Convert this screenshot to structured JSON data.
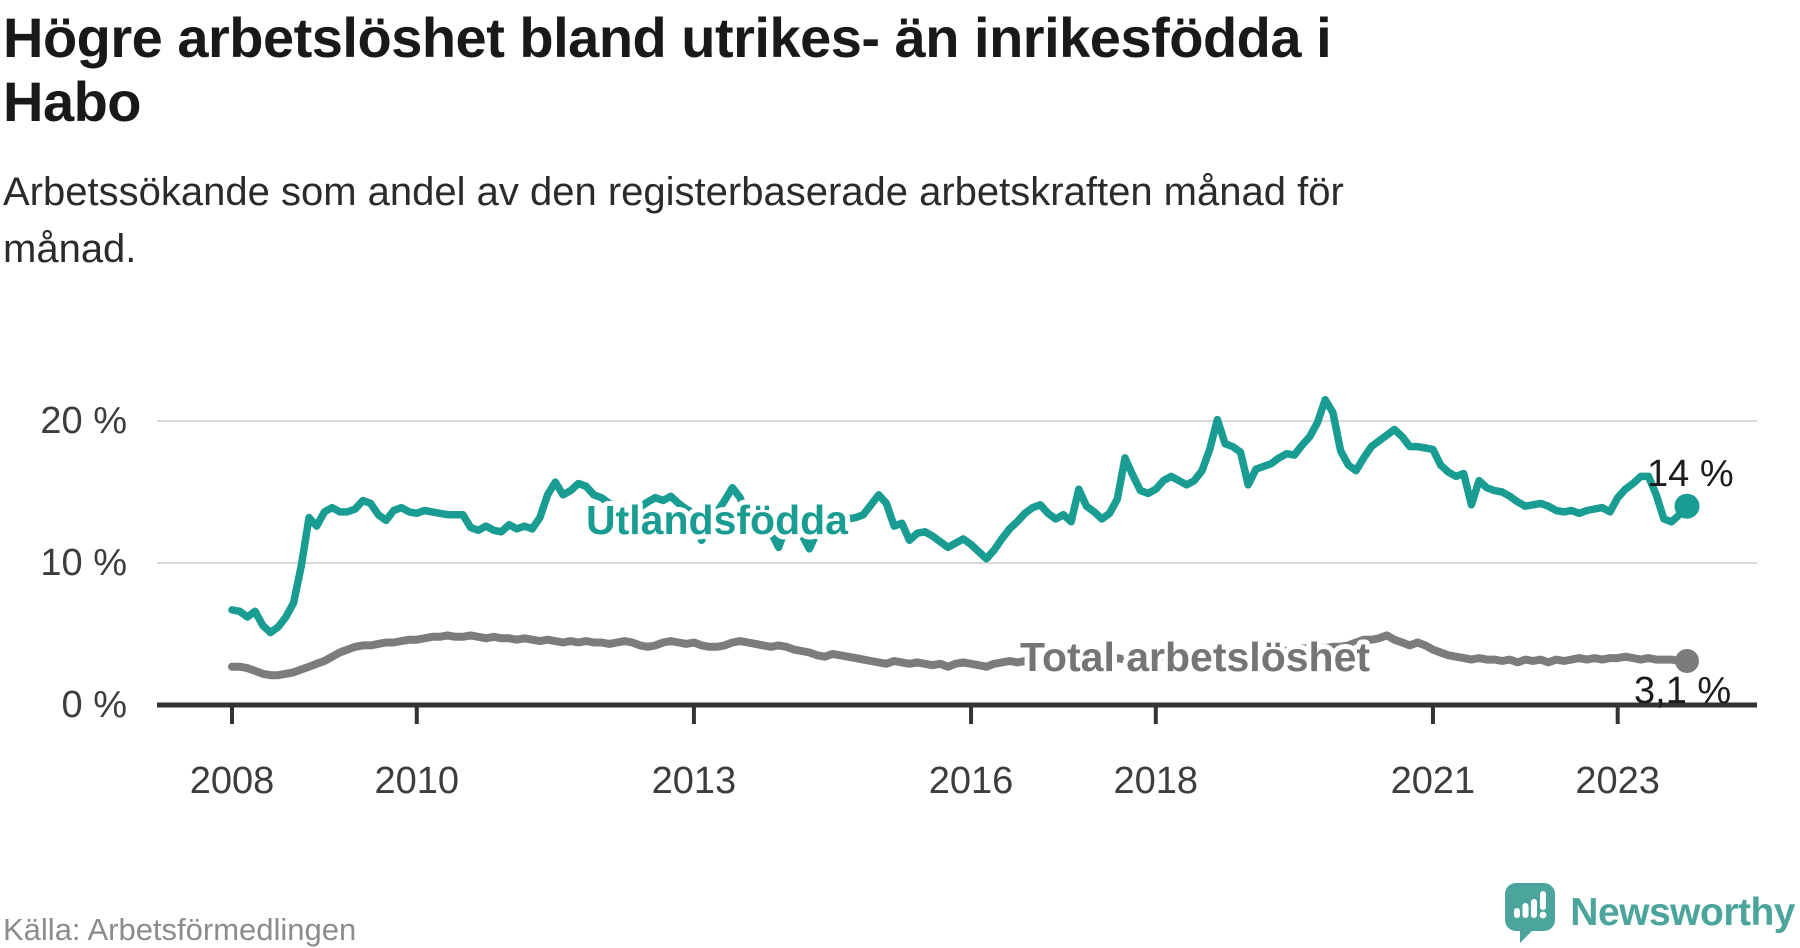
{
  "title": {
    "text": "Högre arbetslöshet bland utrikes- än inrikesfödda i Habo",
    "lines": [
      "Högre arbetslöshet bland utrikes- än inrikesfödda i",
      "Habo"
    ]
  },
  "subtitle": {
    "text": "Arbetssökande som andel av den registerbaserade arbetskraften månad för månad.",
    "lines": [
      "Arbetssökande som andel av den registerbaserade arbetskraften månad för",
      "månad."
    ]
  },
  "source": "Källa: Arbetsförmedlingen",
  "brand": {
    "name": "Newsworthy",
    "icon": "speech-bubble-bar-chart-exclamation-icon",
    "color": "#4ba59d"
  },
  "colors": {
    "series1": "#199c92",
    "series2": "#7c7c7c",
    "grid": "#d9d9d9",
    "axis": "#333333",
    "title_text": "#191919",
    "axis_text": "#3d3d3d",
    "source_text": "#8c8c8c"
  },
  "chart_data": {
    "type": "line",
    "title": "Högre arbetslöshet bland utrikes- än inrikesfödda i Habo",
    "xlabel": "",
    "ylabel": "",
    "unit": "%",
    "frequency": "monthly",
    "x_start": "2008-01",
    "x_end": "2023-10",
    "ylim": [
      0,
      22
    ],
    "grid": "horizontal",
    "y_axis": {
      "ticks": [
        {
          "value": 20,
          "label": "20 %"
        },
        {
          "value": 10,
          "label": "10 %"
        },
        {
          "value": 0,
          "label": "0 %"
        }
      ]
    },
    "x_axis": {
      "ticks": [
        {
          "year": 2008,
          "label": "2008"
        },
        {
          "year": 2010,
          "label": "2010"
        },
        {
          "year": 2013,
          "label": "2013"
        },
        {
          "year": 2016,
          "label": "2016"
        },
        {
          "year": 2018,
          "label": "2018"
        },
        {
          "year": 2021,
          "label": "2021"
        },
        {
          "year": 2023,
          "label": "2023"
        }
      ]
    },
    "series": [
      {
        "name": "Utlandsfödda",
        "color": "#199c92",
        "end_label": "14 %",
        "end_value": 14.0,
        "values": [
          6.7,
          6.6,
          6.2,
          6.6,
          5.6,
          5.1,
          5.5,
          6.2,
          7.2,
          9.8,
          13.2,
          12.6,
          13.6,
          13.9,
          13.6,
          13.6,
          13.8,
          14.4,
          14.2,
          13.4,
          13.0,
          13.7,
          13.9,
          13.6,
          13.5,
          13.7,
          13.6,
          13.5,
          13.4,
          13.4,
          13.4,
          12.5,
          12.3,
          12.6,
          12.3,
          12.2,
          12.7,
          12.4,
          12.6,
          12.4,
          13.2,
          14.8,
          15.7,
          14.8,
          15.1,
          15.6,
          15.4,
          14.8,
          14.6,
          14.2,
          13.8,
          14.0,
          13.6,
          13.9,
          14.3,
          14.6,
          14.4,
          14.7,
          14.2,
          13.8,
          13.5,
          11.6,
          12.8,
          13.6,
          14.4,
          15.3,
          14.6,
          13.2,
          12.4,
          13.0,
          12.2,
          11.1,
          12.6,
          13.4,
          12.0,
          11.0,
          12.2,
          13.0,
          13.3,
          13.2,
          13.1,
          13.2,
          13.4,
          14.1,
          14.8,
          14.2,
          12.6,
          12.8,
          11.6,
          12.1,
          12.2,
          11.9,
          11.5,
          11.1,
          11.4,
          11.7,
          11.3,
          10.8,
          10.3,
          10.9,
          11.7,
          12.4,
          12.9,
          13.5,
          13.9,
          14.1,
          13.5,
          13.1,
          13.4,
          12.9,
          15.2,
          14.0,
          13.6,
          13.1,
          13.5,
          14.5,
          17.4,
          16.2,
          15.1,
          14.9,
          15.2,
          15.8,
          16.1,
          15.8,
          15.5,
          15.8,
          16.5,
          18.0,
          20.1,
          18.4,
          18.2,
          17.8,
          15.5,
          16.6,
          16.8,
          17.0,
          17.4,
          17.7,
          17.6,
          18.3,
          18.9,
          19.9,
          21.5,
          20.6,
          17.9,
          16.9,
          16.5,
          17.4,
          18.2,
          18.6,
          19.0,
          19.4,
          18.9,
          18.2,
          18.2,
          18.1,
          18.0,
          16.9,
          16.4,
          16.1,
          16.3,
          14.1,
          15.8,
          15.3,
          15.1,
          15.0,
          14.7,
          14.3,
          14.0,
          14.1,
          14.2,
          14.0,
          13.7,
          13.6,
          13.7,
          13.5,
          13.7,
          13.8,
          13.9,
          13.6,
          14.6,
          15.2,
          15.6,
          16.1,
          16.1,
          14.8,
          13.1,
          12.9,
          13.4,
          14.0
        ]
      },
      {
        "name": "Total arbetslöshet",
        "color": "#7c7c7c",
        "end_label": "3,1 %",
        "end_value": 3.1,
        "values": [
          2.7,
          2.7,
          2.6,
          2.4,
          2.2,
          2.1,
          2.1,
          2.2,
          2.3,
          2.5,
          2.7,
          2.9,
          3.1,
          3.4,
          3.7,
          3.9,
          4.1,
          4.2,
          4.2,
          4.3,
          4.4,
          4.4,
          4.5,
          4.6,
          4.6,
          4.7,
          4.8,
          4.8,
          4.9,
          4.8,
          4.8,
          4.9,
          4.8,
          4.7,
          4.8,
          4.7,
          4.7,
          4.6,
          4.7,
          4.6,
          4.5,
          4.6,
          4.5,
          4.4,
          4.5,
          4.4,
          4.5,
          4.4,
          4.4,
          4.3,
          4.4,
          4.5,
          4.4,
          4.2,
          4.1,
          4.2,
          4.4,
          4.5,
          4.4,
          4.3,
          4.4,
          4.2,
          4.1,
          4.1,
          4.2,
          4.4,
          4.5,
          4.4,
          4.3,
          4.2,
          4.1,
          4.2,
          4.1,
          3.9,
          3.8,
          3.7,
          3.5,
          3.4,
          3.6,
          3.5,
          3.4,
          3.3,
          3.2,
          3.1,
          3.0,
          2.9,
          3.1,
          3.0,
          2.9,
          3.0,
          2.9,
          2.8,
          2.9,
          2.7,
          2.9,
          3.0,
          2.9,
          2.8,
          2.7,
          2.9,
          3.0,
          3.1,
          3.0,
          3.1,
          3.0,
          3.2,
          3.1,
          3.0,
          3.0,
          3.1,
          3.1,
          3.2,
          3.1,
          3.2,
          3.2,
          3.3,
          3.2,
          3.3,
          3.3,
          3.4,
          3.3,
          3.4,
          3.4,
          3.5,
          3.4,
          3.5,
          3.5,
          3.6,
          3.6,
          3.7,
          3.6,
          3.7,
          3.7,
          3.8,
          3.7,
          3.8,
          3.9,
          3.8,
          3.9,
          4.0,
          4.0,
          4.1,
          4.0,
          4.1,
          4.1,
          4.2,
          4.4,
          4.6,
          4.6,
          4.7,
          4.9,
          4.6,
          4.4,
          4.2,
          4.4,
          4.2,
          3.9,
          3.7,
          3.5,
          3.4,
          3.3,
          3.2,
          3.3,
          3.2,
          3.2,
          3.1,
          3.2,
          3.0,
          3.2,
          3.1,
          3.2,
          3.0,
          3.2,
          3.1,
          3.2,
          3.3,
          3.2,
          3.3,
          3.2,
          3.3,
          3.3,
          3.4,
          3.3,
          3.2,
          3.3,
          3.2,
          3.2,
          3.2,
          3.1,
          3.1
        ]
      }
    ],
    "legend_position": "inline-annotations"
  }
}
